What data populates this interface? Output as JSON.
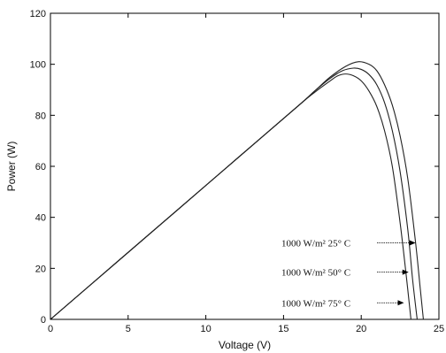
{
  "chart_data": {
    "type": "line",
    "title": "",
    "xlabel": "Voltage (V)",
    "ylabel": "Power (W)",
    "xlim": [
      0,
      25
    ],
    "ylim": [
      0,
      120
    ],
    "xticks": [
      0,
      5,
      10,
      15,
      20,
      25
    ],
    "yticks": [
      0,
      20,
      40,
      60,
      80,
      100,
      120
    ],
    "grid": false,
    "series": [
      {
        "name": "1000 W/m² 25° C",
        "x": [
          0,
          4,
          8,
          12,
          16,
          17,
          18,
          19,
          19.8,
          20.5,
          21,
          21.5,
          22,
          22.5,
          23,
          23.5,
          23.8,
          24.0
        ],
        "y": [
          0,
          21,
          42,
          63,
          84,
          89.5,
          95,
          99.2,
          101,
          100,
          97.5,
          92,
          84,
          72,
          55,
          30,
          12,
          0
        ]
      },
      {
        "name": "1000 W/m² 50° C",
        "x": [
          0,
          4,
          8,
          12,
          16,
          17,
          18,
          18.8,
          19.5,
          20,
          20.5,
          21,
          21.5,
          22,
          22.5,
          23,
          23.3,
          23.6
        ],
        "y": [
          0,
          21,
          42,
          63,
          84,
          89.5,
          94.5,
          97.5,
          98.5,
          98,
          96,
          92,
          85,
          74,
          58,
          35,
          16,
          0
        ]
      },
      {
        "name": "1000 W/m² 75° C",
        "x": [
          0,
          4,
          8,
          12,
          16,
          17,
          18,
          18.5,
          19,
          19.5,
          20,
          20.5,
          21,
          21.5,
          22,
          22.5,
          22.9,
          23.2
        ],
        "y": [
          0,
          21,
          42,
          63,
          84,
          89,
          93.5,
          95.5,
          96.2,
          95.5,
          93.5,
          89.5,
          83.5,
          74,
          60,
          38,
          17,
          0
        ]
      }
    ],
    "annotations": [
      {
        "text": "1000 W/m² 25° C",
        "y": 30,
        "arrow_to_x": 23.5
      },
      {
        "text": "1000 W/m² 50° C",
        "y": 18.5,
        "arrow_to_x": 23.05
      },
      {
        "text": "1000 W/m² 75° C",
        "y": 6.5,
        "arrow_to_x": 22.75
      }
    ]
  }
}
